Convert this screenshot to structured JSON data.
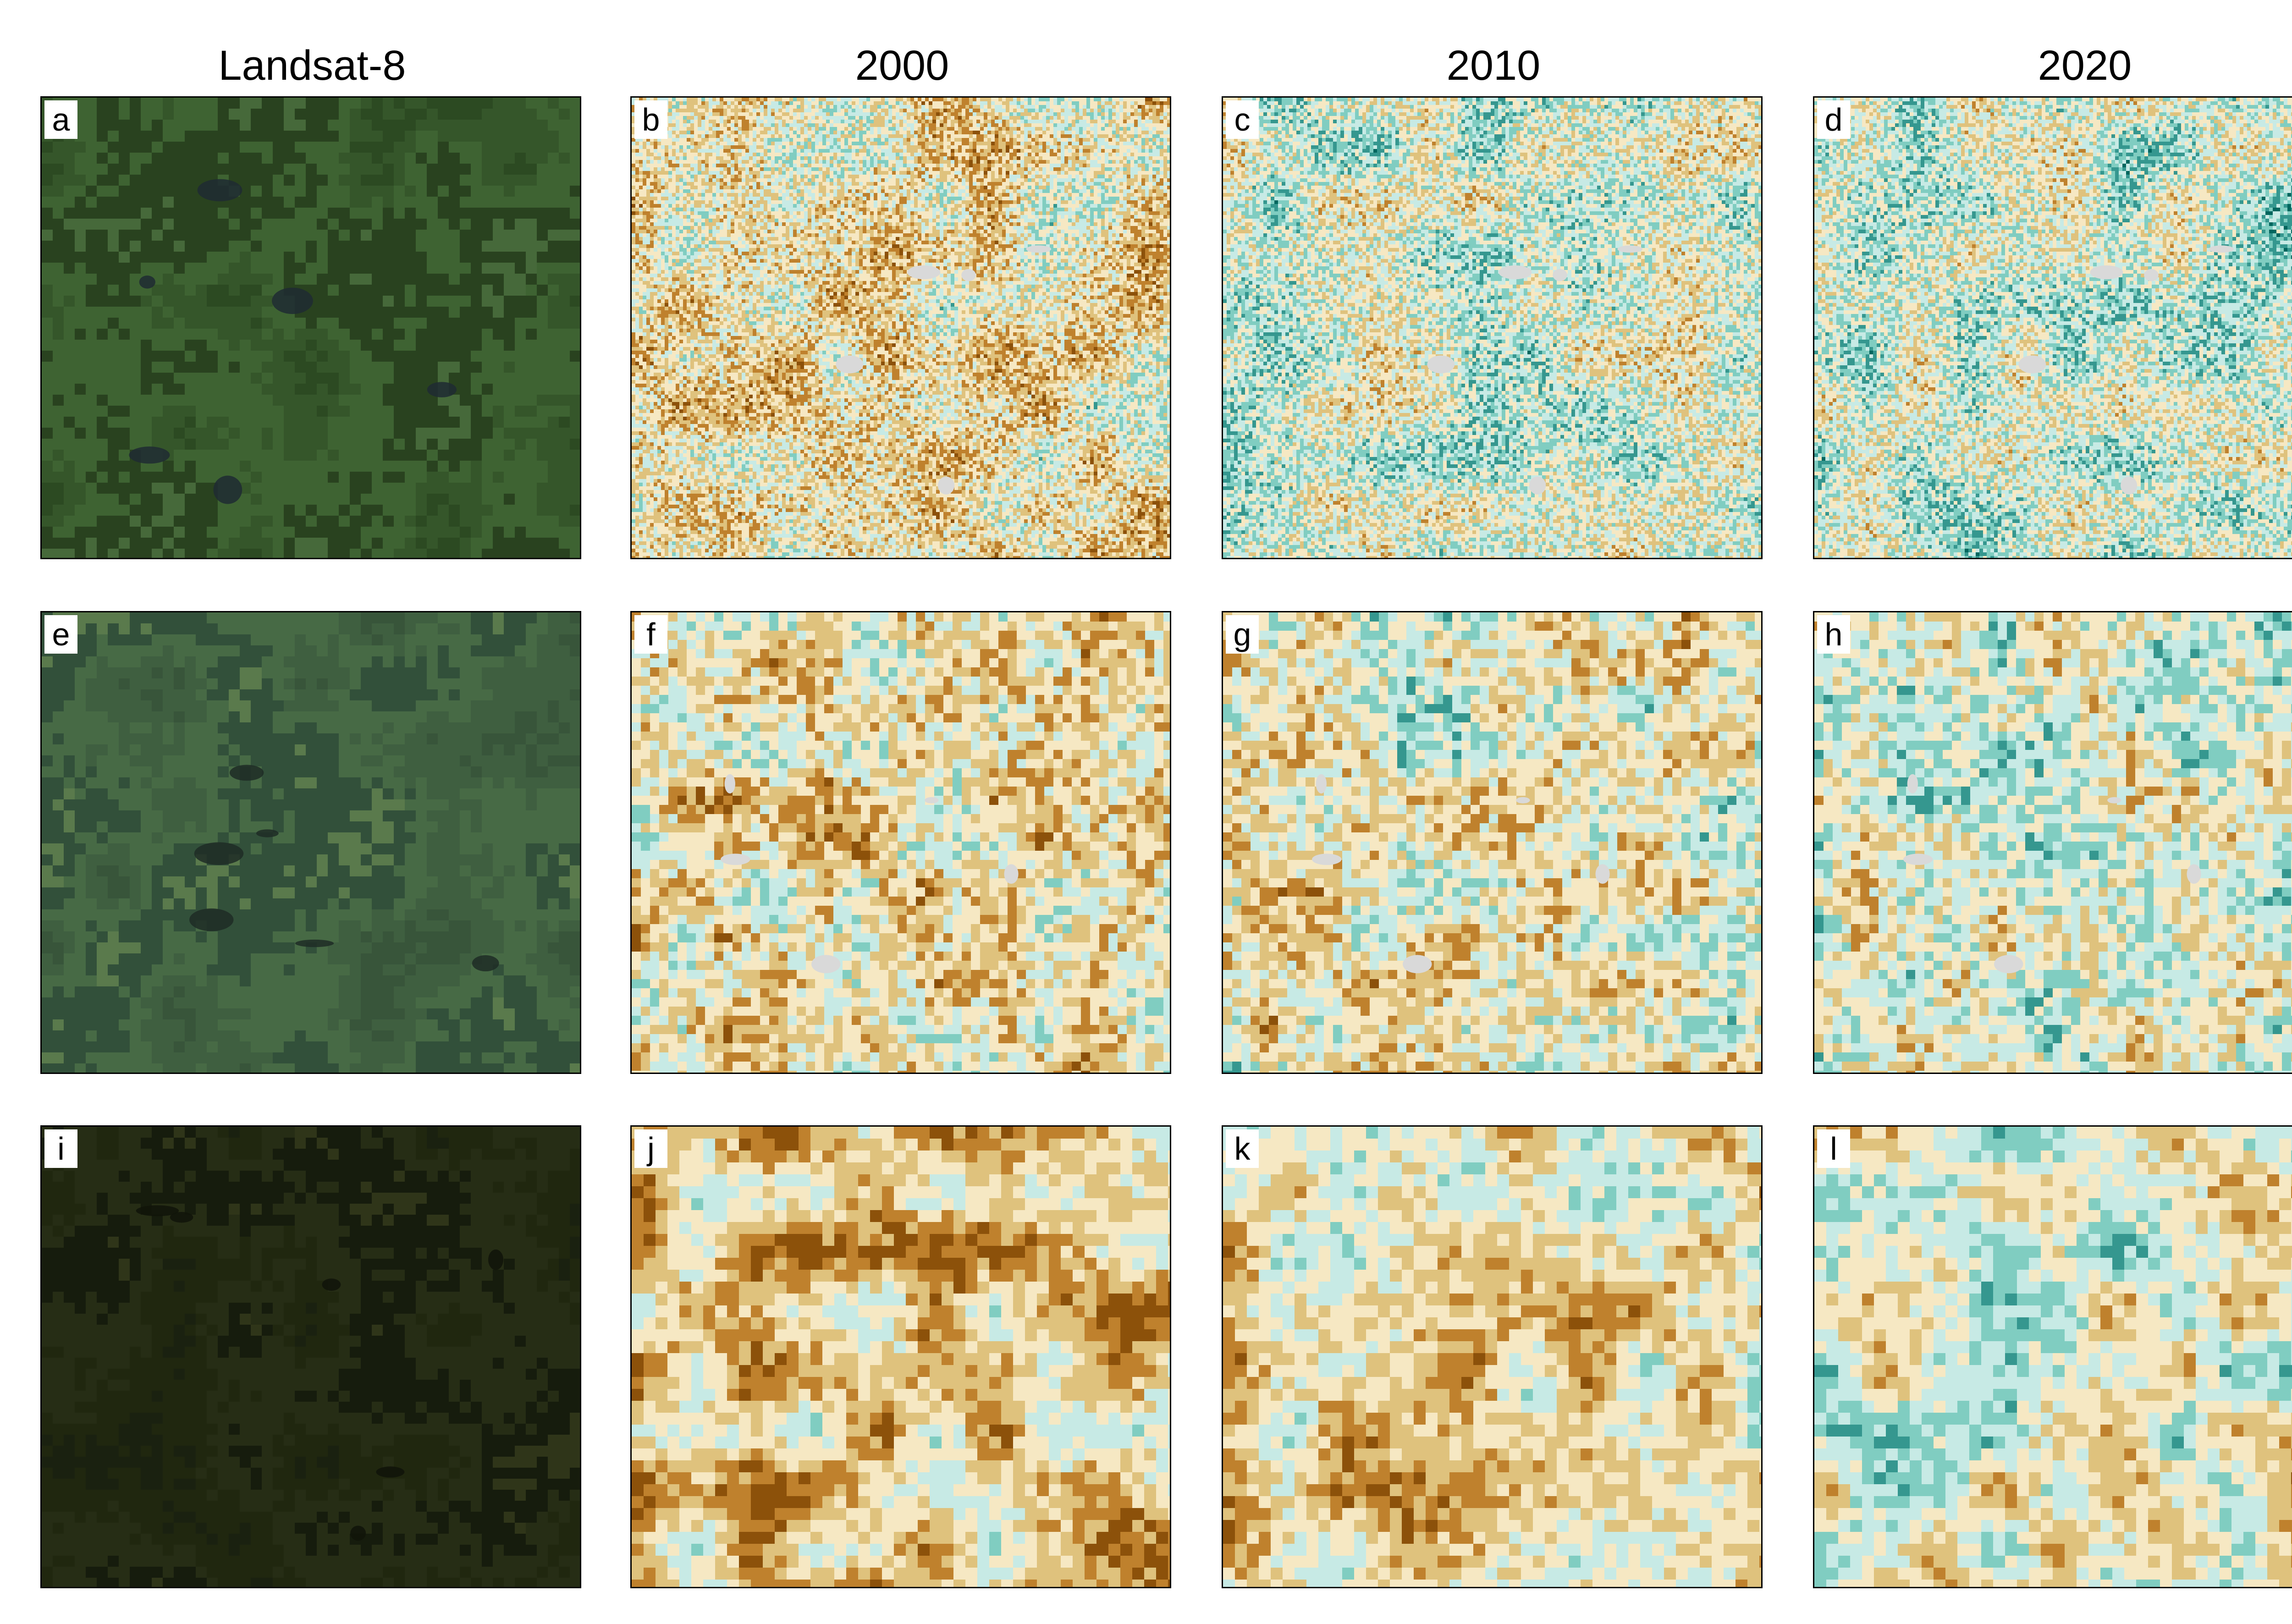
{
  "columns": [
    {
      "title": "Landsat-8"
    },
    {
      "title": "2000"
    },
    {
      "title": "2010"
    },
    {
      "title": "2020"
    }
  ],
  "panels": [
    {
      "label": "a",
      "kind": "satellite",
      "satellite_palette": [
        "#2c4a22",
        "#35562a",
        "#3e6332",
        "#29421f",
        "#46693a"
      ],
      "water_color": "#1e2a33"
    },
    {
      "label": "b",
      "kind": "map",
      "bias": 0.35,
      "cell": 8,
      "grain": 0.55,
      "nodata": true
    },
    {
      "label": "c",
      "kind": "map",
      "bias": 0.55,
      "cell": 8,
      "grain": 0.55,
      "nodata": true
    },
    {
      "label": "d",
      "kind": "map",
      "bias": 0.58,
      "cell": 8,
      "grain": 0.55,
      "nodata": true
    },
    {
      "label": "e",
      "kind": "satellite",
      "satellite_palette": [
        "#38553a",
        "#3f5f40",
        "#476a45",
        "#32503a",
        "#5a7a4c"
      ],
      "water_color": "#1f2b26"
    },
    {
      "label": "f",
      "kind": "map",
      "bias": 0.32,
      "cell": 20,
      "grain": 0.5,
      "nodata": true
    },
    {
      "label": "g",
      "kind": "map",
      "bias": 0.42,
      "cell": 20,
      "grain": 0.5,
      "nodata": true
    },
    {
      "label": "h",
      "kind": "map",
      "bias": 0.5,
      "cell": 20,
      "grain": 0.5,
      "nodata": true
    },
    {
      "label": "i",
      "kind": "satellite",
      "satellite_palette": [
        "#1a2110",
        "#20270f",
        "#262d15",
        "#161c0d",
        "#2f3519"
      ],
      "water_color": "#111409"
    },
    {
      "label": "j",
      "kind": "map",
      "bias": 0.18,
      "cell": 26,
      "grain": 0.35,
      "nodata": false
    },
    {
      "label": "k",
      "kind": "map",
      "bias": 0.3,
      "cell": 26,
      "grain": 0.35,
      "nodata": false
    },
    {
      "label": "l",
      "kind": "map",
      "bias": 0.45,
      "cell": 26,
      "grain": 0.35,
      "nodata": false
    }
  ],
  "map_palette": [
    "#8c510a",
    "#bf812d",
    "#dfc27d",
    "#f6e8c3",
    "#c7eae5",
    "#80cdc1",
    "#35978f",
    "#01665e"
  ],
  "nodata_color": "#d9d9d9"
}
